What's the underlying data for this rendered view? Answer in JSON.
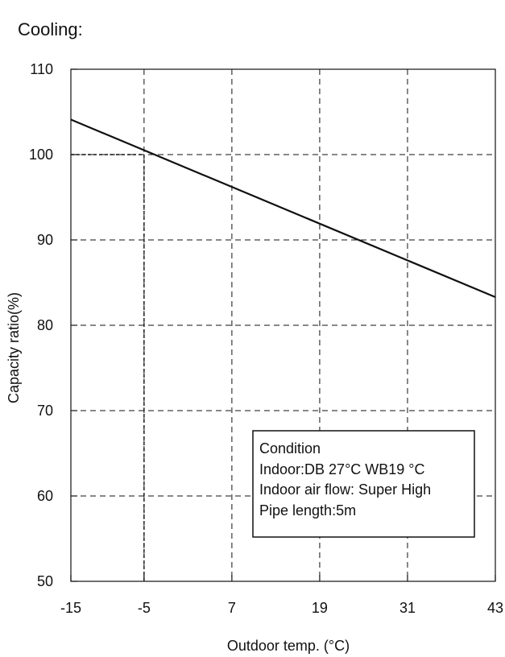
{
  "chart_data": {
    "type": "line",
    "title": "Cooling:",
    "xlabel": "Outdoor temp. (°C)",
    "ylabel": "Capacity ratio(%)",
    "x_ticks": [
      -15,
      -5,
      7,
      19,
      31,
      43
    ],
    "x_tick_labels": [
      "-15",
      "-5",
      "7",
      "19",
      "31",
      "43"
    ],
    "y_ticks": [
      50,
      60,
      70,
      80,
      90,
      100,
      110
    ],
    "y_tick_labels": [
      "50",
      "60",
      "70",
      "80",
      "90",
      "100",
      "110"
    ],
    "xlim": [
      -15,
      43
    ],
    "ylim": [
      50,
      110
    ],
    "grid": true,
    "series": [
      {
        "points": [
          {
            "x": -15,
            "y": 104.1
          },
          {
            "x": 43,
            "y": 83.3
          }
        ],
        "color": "#111111"
      }
    ],
    "reference_point": {
      "x": -5,
      "y": 100
    },
    "annotation": {
      "lines": [
        "Condition",
        "Indoor:DB 27°C   WB19 °C",
        "Indoor air flow: Super High",
        "Pipe length:5m"
      ]
    },
    "colors": {
      "axis": "#111111",
      "grid": "#111111",
      "line": "#111111",
      "background": "#ffffff"
    }
  }
}
